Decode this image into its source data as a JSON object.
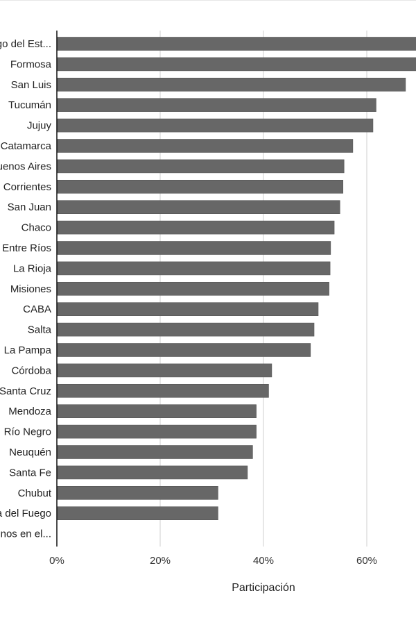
{
  "chart_data": {
    "type": "bar",
    "orientation": "horizontal",
    "categories": [
      "Santiago del Est...",
      "Formosa",
      "San Luis",
      "Tucumán",
      "Jujuy",
      "Catamarca",
      "Buenos Aires",
      "Corrientes",
      "San Juan",
      "Chaco",
      "Entre Ríos",
      "La Rioja",
      "Misiones",
      "CABA",
      "Salta",
      "La Pampa",
      "Córdoba",
      "Santa Cruz",
      "Mendoza",
      "Río Negro",
      "Neuquén",
      "Santa Fe",
      "Chubut",
      "Tierra del Fuego",
      "Argentinos en el..."
    ],
    "values": [
      70.5,
      70.3,
      67.5,
      61.8,
      61.2,
      57.3,
      55.6,
      55.4,
      54.8,
      53.7,
      53.0,
      52.9,
      52.7,
      50.6,
      49.8,
      49.1,
      41.6,
      41.0,
      38.6,
      38.6,
      37.9,
      36.9,
      31.2,
      31.2,
      0
    ],
    "xlabel": "Participación",
    "ylabel": "",
    "xticks": [
      "0%",
      "20%",
      "40%",
      "60%"
    ],
    "xlim": [
      0,
      70
    ],
    "grid": true,
    "bar_color": "#676767"
  }
}
